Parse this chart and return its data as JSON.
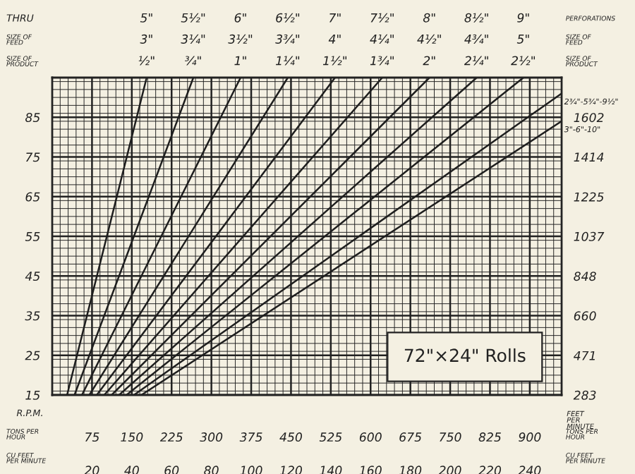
{
  "chart_data": {
    "type": "line",
    "title": "72\"×24\" Rolls",
    "xlabel": "TONS PER HOUR",
    "x2label": "CU FEET PER MINUTE",
    "ylabel": "R.P.M.",
    "y2label": "FEET PER MINUTE",
    "xlim": [
      0,
      960
    ],
    "xticks": [
      75,
      150,
      225,
      300,
      375,
      450,
      525,
      600,
      675,
      750,
      825,
      900
    ],
    "x2lim": [
      0,
      256
    ],
    "x2ticks": [
      20,
      40,
      60,
      80,
      100,
      120,
      140,
      160,
      180,
      200,
      220,
      240
    ],
    "ylim": [
      15,
      95
    ],
    "yticks": [
      15,
      25,
      35,
      45,
      55,
      65,
      75,
      85
    ],
    "y2lim": [
      283,
      1791
    ],
    "y2ticks": [
      283,
      471,
      660,
      848,
      1037,
      1225,
      1414,
      1602
    ],
    "grid": true,
    "series": [
      {
        "name": "½\"",
        "color": "#1e1e1e",
        "x": [
          28,
          178
        ],
        "values": [
          15,
          95
        ]
      },
      {
        "name": "¾\"",
        "color": "#1e1e1e",
        "x": [
          42,
          266
        ],
        "values": [
          15,
          95
        ]
      },
      {
        "name": "1\"",
        "color": "#1e1e1e",
        "x": [
          56,
          355
        ],
        "values": [
          15,
          95
        ]
      },
      {
        "name": "1¼\"",
        "color": "#1e1e1e",
        "x": [
          70,
          444
        ],
        "values": [
          15,
          95
        ]
      },
      {
        "name": "1½\"",
        "color": "#1e1e1e",
        "x": [
          84,
          533
        ],
        "values": [
          15,
          95
        ]
      },
      {
        "name": "1¾\"",
        "color": "#1e1e1e",
        "x": [
          98,
          622
        ],
        "values": [
          15,
          95
        ]
      },
      {
        "name": "2\"",
        "color": "#1e1e1e",
        "x": [
          112,
          711
        ],
        "values": [
          15,
          95
        ]
      },
      {
        "name": "2¼\"",
        "color": "#1e1e1e",
        "x": [
          126,
          800
        ],
        "values": [
          15,
          95
        ]
      },
      {
        "name": "2½\"",
        "color": "#1e1e1e",
        "x": [
          140,
          888
        ],
        "values": [
          15,
          95
        ]
      },
      {
        "name": "2¾\"-5¾\"-9½\"",
        "color": "#1e1e1e",
        "x": [
          154,
          960
        ],
        "values": [
          15,
          91
        ]
      },
      {
        "name": "3\"-6\"-10\"",
        "color": "#1e1e1e",
        "x": [
          168,
          960
        ],
        "values": [
          15,
          84
        ]
      }
    ],
    "annotations": [
      "THRU",
      "SIZE OF FEED",
      "SIZE OF PRODUCT",
      "PERFORATIONS",
      "SIZE OF FEED",
      "SIZE OF PRODUCT",
      "5\"",
      "3\"",
      "5½\"",
      "3¼\"",
      "6\"",
      "3½\"",
      "6½\"",
      "3¾\"",
      "7\"",
      "4\"",
      "7½\"",
      "4¼\"",
      "8\"",
      "4½\"",
      "8½\"",
      "4¾\"",
      "9\"",
      "5\""
    ]
  }
}
